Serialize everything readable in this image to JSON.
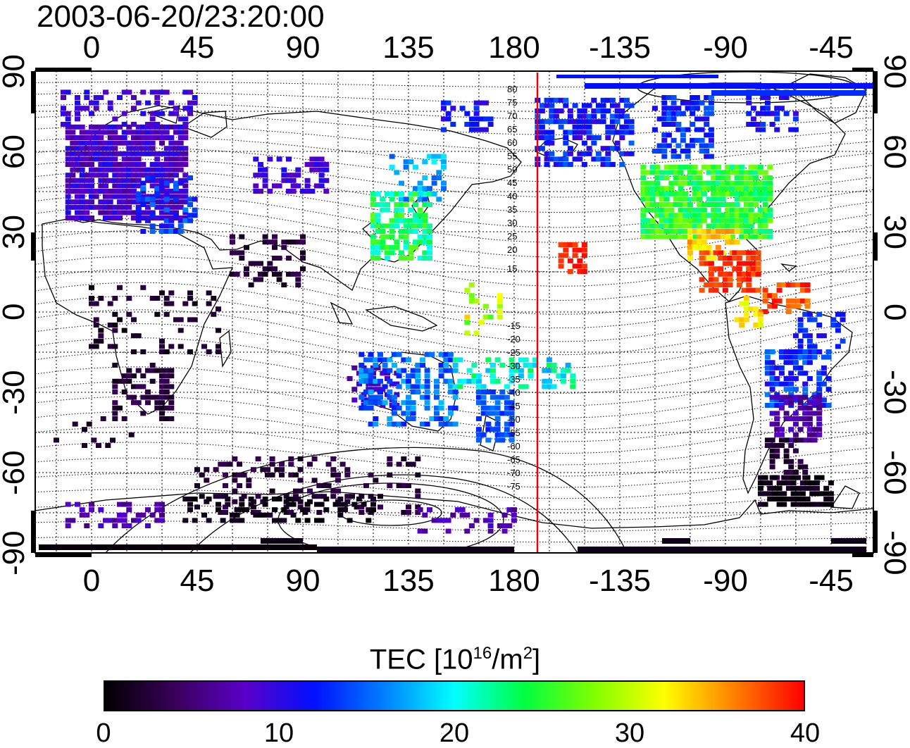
{
  "title": "2003-06-20/23:20:00",
  "map": {
    "lon_ticks_top": [
      "0",
      "45",
      "90",
      "135",
      "180",
      "-135",
      "-90",
      "-45"
    ],
    "lon_ticks_bottom": [
      "0",
      "45",
      "90",
      "135",
      "180",
      "-135",
      "-90",
      "-45"
    ],
    "lat_ticks_left": [
      "90",
      "60",
      "30",
      "0",
      "-30",
      "-60",
      "-90"
    ],
    "lat_ticks_right": [
      "90",
      "60",
      "30",
      "0",
      "-30",
      "-60",
      "-90"
    ],
    "contour_labels_north": [
      "80",
      "75",
      "70",
      "65",
      "60",
      "55",
      "50",
      "45",
      "40",
      "35",
      "30",
      "25",
      "20",
      "15"
    ],
    "contour_labels_south": [
      "-15",
      "-20",
      "-25",
      "-30",
      "-35",
      "-40",
      "-45",
      "-50",
      "-55",
      "-60",
      "-65",
      "-70",
      "-75"
    ],
    "terminator_color": "#e8000b"
  },
  "colorbar": {
    "label_main": "TEC  [10",
    "label_sup1": "16",
    "label_mid": "/m",
    "label_sup2": "2",
    "label_end": "]",
    "ticks": [
      "0",
      "10",
      "20",
      "30",
      "40"
    ],
    "colors": [
      "#000000",
      "#3a005a",
      "#5a00c8",
      "#0010ff",
      "#0080ff",
      "#00ffff",
      "#00ff40",
      "#80ff00",
      "#ffff00",
      "#ff8000",
      "#ff0000"
    ]
  }
}
